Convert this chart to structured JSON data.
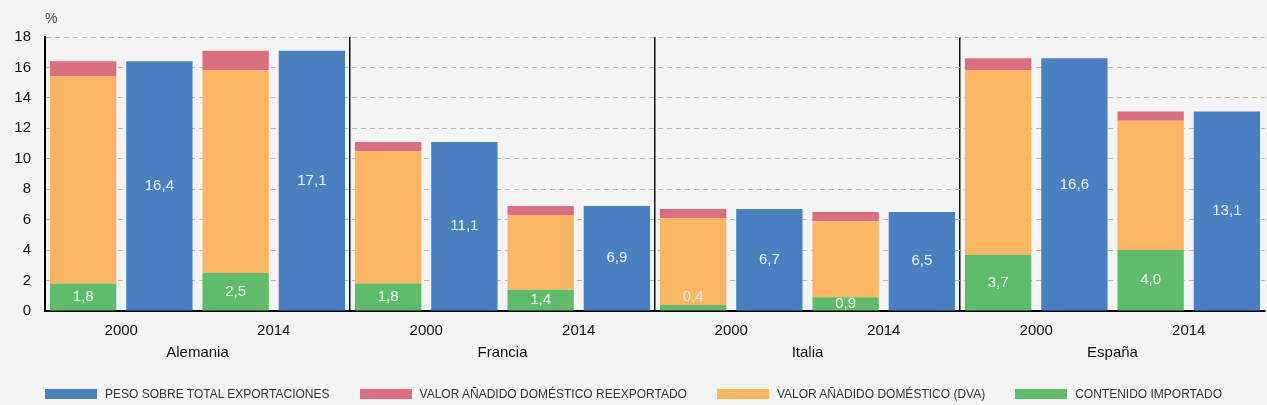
{
  "chart_data": {
    "type": "bar",
    "ylabel": "%",
    "categories": [
      "2000",
      null,
      "2014",
      null,
      "2000",
      null,
      "2014",
      null,
      "2000",
      null,
      "2014",
      null,
      "2000",
      null,
      "2014",
      null
    ],
    "annotations": [
      "Alemania",
      "Francia",
      "Italia",
      "España"
    ],
    "stacked": true,
    "series": [
      {
        "name": "CONTENIDO IMPORTADO",
        "color": "#5ebc6c",
        "values": [
          1.8,
          null,
          2.5,
          null,
          1.8,
          null,
          1.4,
          null,
          0.4,
          null,
          0.9,
          null,
          3.7,
          null,
          4.0,
          null
        ],
        "value_labels": [
          "1,8",
          null,
          "2,5",
          null,
          "1,8",
          null,
          "1,4",
          null,
          "0,4",
          null,
          "0,9",
          null,
          "3,7",
          null,
          "4,0",
          null
        ]
      },
      {
        "name": "VALOR AÑADIDO DOMÉSTICO (DVA)",
        "color": "#fbb664",
        "values": [
          13.6,
          null,
          13.3,
          null,
          8.7,
          null,
          4.9,
          null,
          5.7,
          null,
          5.0,
          null,
          12.1,
          null,
          8.5,
          null
        ]
      },
      {
        "name": "VALOR AÑADIDO DOMÉSTICO REEXPORTADO",
        "color": "#dc6f7f",
        "values": [
          1.0,
          null,
          1.3,
          null,
          0.6,
          null,
          0.6,
          null,
          0.6,
          null,
          0.6,
          null,
          0.8,
          null,
          0.6,
          null
        ]
      },
      {
        "name": "PESO SOBRE TOTAL EXPORTACIONES",
        "color": "#4a80c2",
        "values": [
          null,
          16.4,
          null,
          17.1,
          null,
          11.1,
          null,
          6.9,
          null,
          6.7,
          null,
          6.5,
          null,
          16.6,
          null,
          13.1
        ],
        "value_labels": [
          null,
          "16,4",
          null,
          "17,1",
          null,
          "11,1",
          null,
          "6,9",
          null,
          "6,7",
          null,
          "6,5",
          null,
          "16,6",
          null,
          "13,1"
        ]
      }
    ],
    "ylim": [
      0,
      18
    ],
    "yticks": [
      0,
      2,
      4,
      6,
      8,
      10,
      12,
      14,
      16,
      18
    ],
    "grid": true,
    "legend": "bottom"
  }
}
